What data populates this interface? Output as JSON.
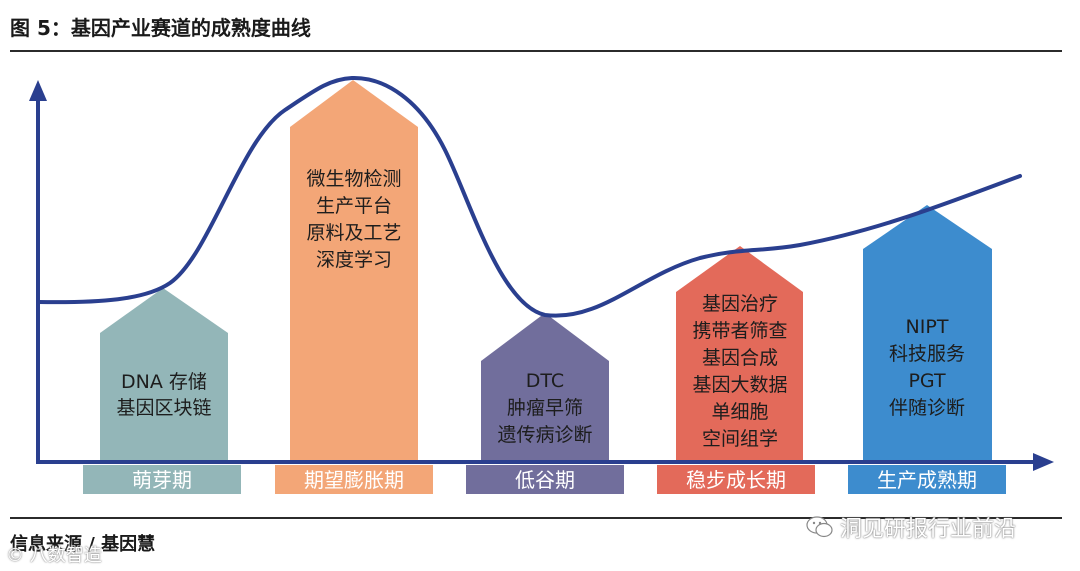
{
  "title": "图 5：基因产业赛道的成熟度曲线",
  "source": "信息来源 / 基因慧",
  "watermark_left": "© 八数智造",
  "watermark_right": "洞见研报行业前沿",
  "colors": {
    "axis": "#2a3f8f",
    "curve": "#2a3f8f",
    "stage1": "#93b6b8",
    "stage2": "#f3a677",
    "stage3": "#716e9c",
    "stage4": "#e36a5a",
    "stage5": "#3d8cce"
  },
  "stages": [
    {
      "label": "萌芽期",
      "lines": [
        "DNA 存储",
        "基因区块链"
      ]
    },
    {
      "label": "期望膨胀期",
      "lines": [
        "微生物检测",
        "生产平台",
        "原料及工艺",
        "深度学习"
      ]
    },
    {
      "label": "低谷期",
      "lines": [
        "DTC",
        "肿瘤早筛",
        "遗传病诊断"
      ]
    },
    {
      "label": "稳步成长期",
      "lines": [
        "基因治疗",
        "携带者筛查",
        "基因合成",
        "基因大数据",
        "单细胞",
        "空间组学"
      ]
    },
    {
      "label": "生产成熟期",
      "lines": [
        "NIPT",
        "科技服务",
        "PGT",
        "伴随诊断"
      ]
    }
  ]
}
